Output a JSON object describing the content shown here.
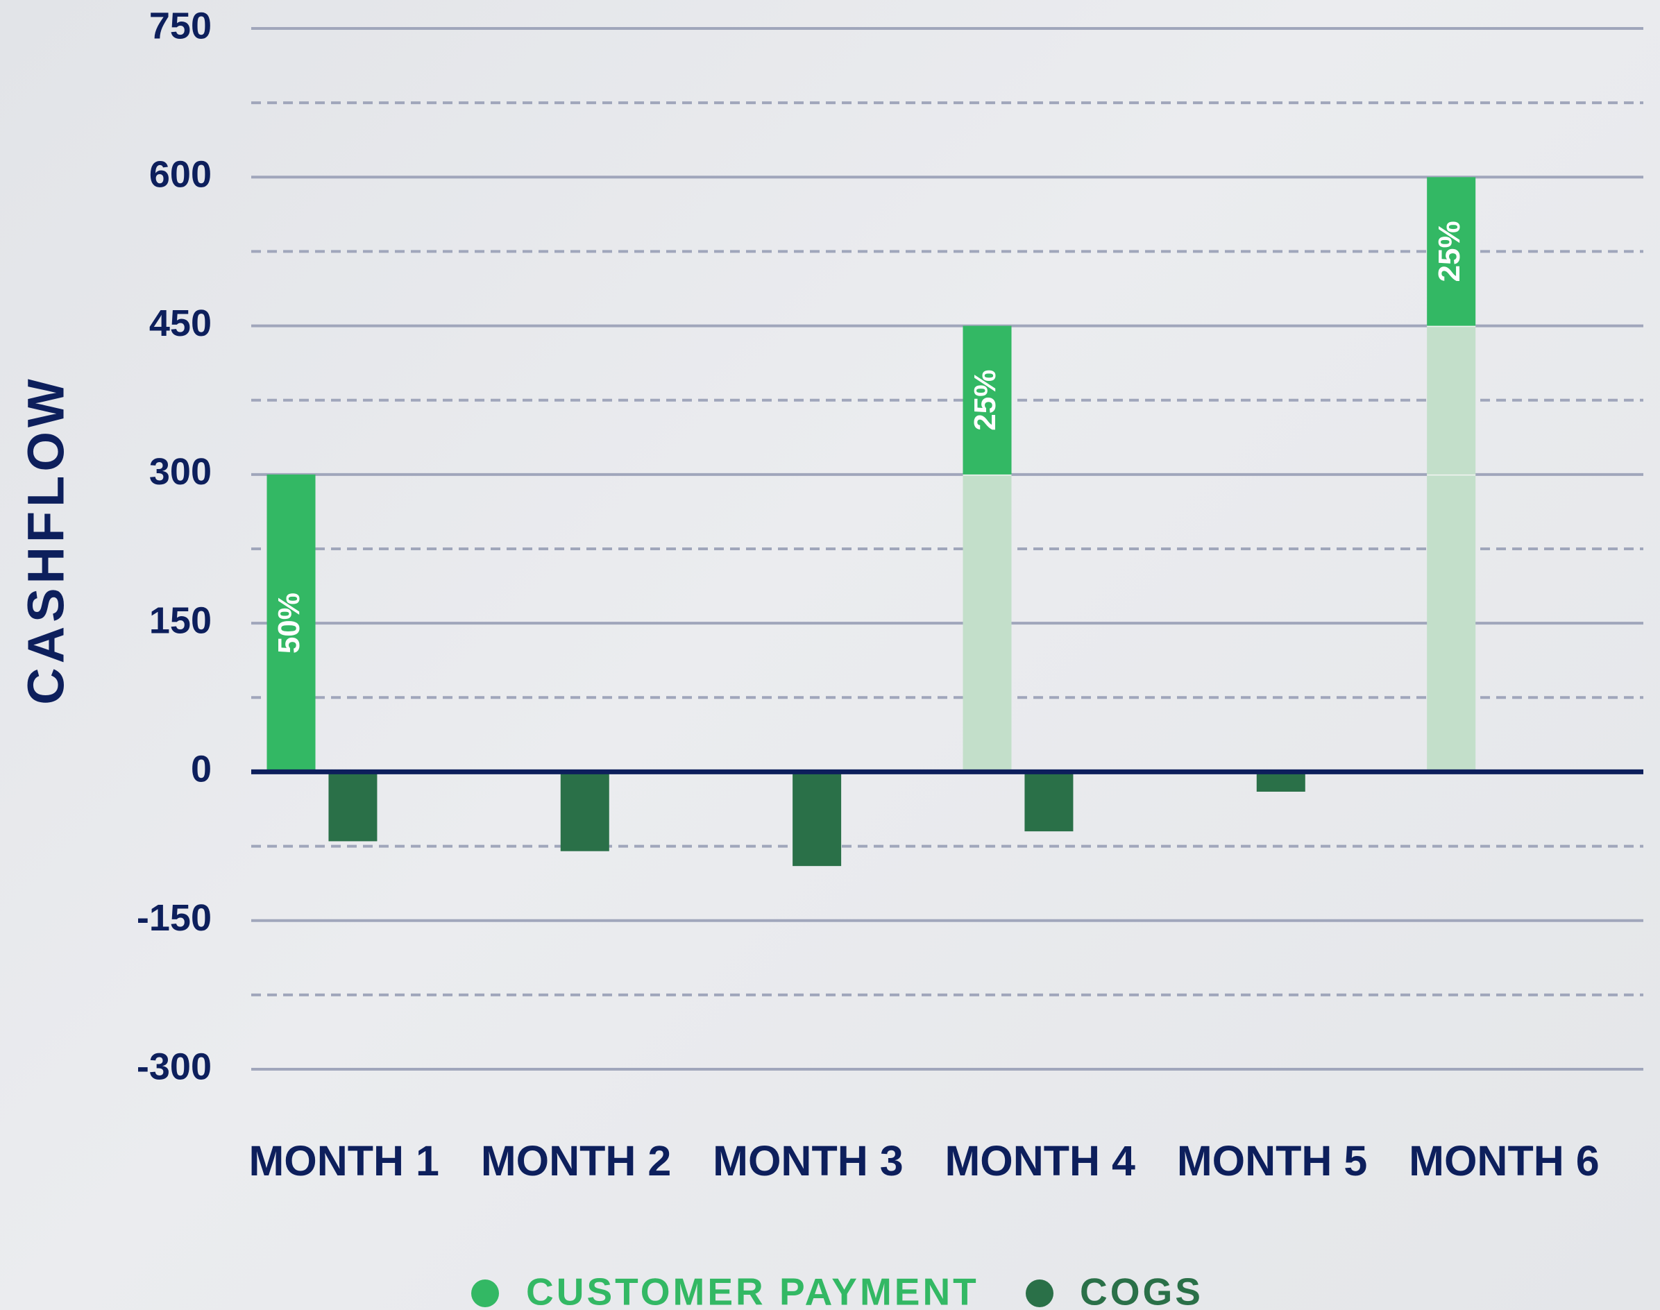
{
  "chart_data": {
    "type": "bar",
    "y_label": "CASHFLOW",
    "categories": [
      "MONTH 1",
      "MONTH 2",
      "MONTH 3",
      "MONTH 4",
      "MONTH 5",
      "MONTH 6"
    ],
    "series": [
      {
        "name": "CUSTOMER PAYMENT",
        "color": "#33b864",
        "faded_color": "#c3dfca",
        "values": [
          300,
          0,
          0,
          150,
          0,
          150
        ],
        "segment_labels": [
          "50%",
          null,
          null,
          "25%",
          null,
          "25%"
        ]
      },
      {
        "name": "COGS",
        "color": "#2a7048",
        "values": [
          -70,
          -80,
          -95,
          -60,
          -20,
          0
        ]
      }
    ],
    "ylim": [
      -300,
      750
    ],
    "yticks": [
      -300,
      -150,
      0,
      150,
      300,
      450,
      600,
      750
    ],
    "grid": true,
    "minor_grid": true,
    "legend": "bottom"
  }
}
